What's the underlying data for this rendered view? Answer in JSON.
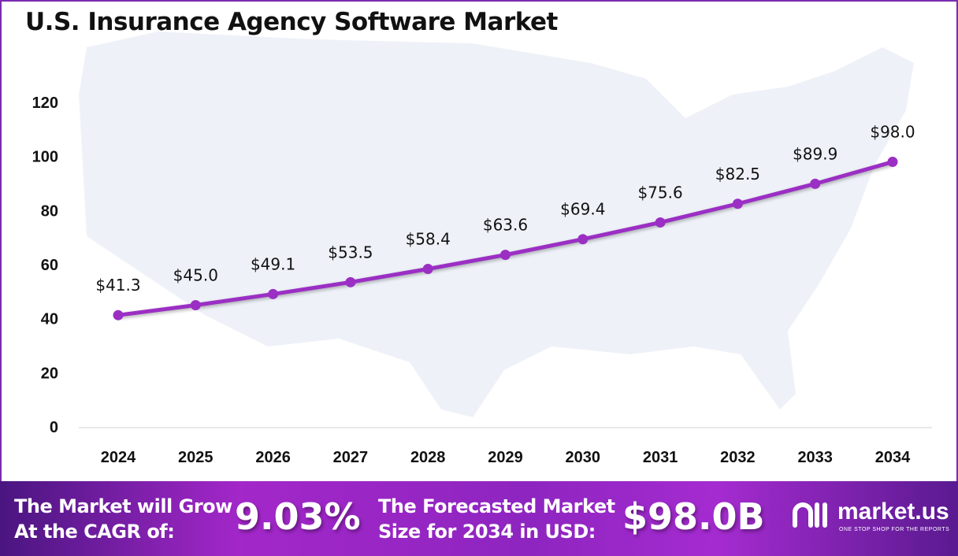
{
  "title": "U.S. Insurance Agency Software Market",
  "chart_data": {
    "type": "line",
    "title": "U.S. Insurance Agency Software Market",
    "categories": [
      "2024",
      "2025",
      "2026",
      "2027",
      "2028",
      "2029",
      "2030",
      "2031",
      "2032",
      "2033",
      "2034"
    ],
    "values": [
      41.3,
      45.0,
      49.1,
      53.5,
      58.4,
      63.6,
      69.4,
      75.6,
      82.5,
      89.9,
      98.0
    ],
    "data_labels": [
      "$41.3",
      "$45.0",
      "$49.1",
      "$53.5",
      "$58.4",
      "$63.6",
      "$69.4",
      "$75.6",
      "$82.5",
      "$89.9",
      "$98.0"
    ],
    "yticks": [
      "0",
      "20",
      "40",
      "60",
      "80",
      "100",
      "120"
    ],
    "ylim": [
      0,
      120
    ],
    "grid": false,
    "line_color": "#9b2fc4"
  },
  "footer": {
    "cagr_text_1": "The Market will Grow",
    "cagr_text_2": "At the CAGR of:",
    "cagr_value": "9.03%",
    "forecast_text_1": "The Forecasted Market",
    "forecast_text_2": "Size for 2034 in USD:",
    "forecast_value": "$98.0B",
    "logo_name": "market.us",
    "logo_tagline": "ONE STOP SHOP FOR THE REPORTS"
  }
}
